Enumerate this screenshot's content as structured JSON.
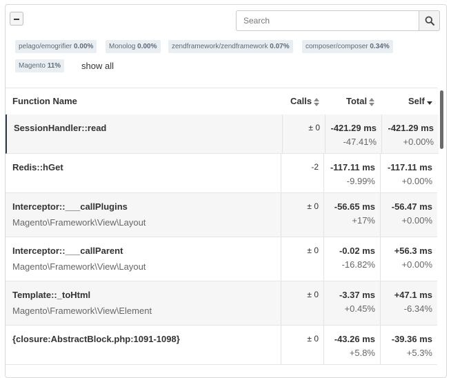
{
  "search": {
    "placeholder": "Search"
  },
  "tags": [
    {
      "name": "pelago/emogrifier",
      "pct": "0.00%"
    },
    {
      "name": "Monolog",
      "pct": "0.00%"
    },
    {
      "name": "zendframework/zendframework",
      "pct": "0.07%"
    },
    {
      "name": "composer/composer",
      "pct": "0.34%"
    },
    {
      "name": "Magento",
      "pct": "11%"
    }
  ],
  "show_all_label": "show all",
  "columns": {
    "function_name": "Function Name",
    "calls": "Calls",
    "total": "Total",
    "self": "Self"
  },
  "rows": [
    {
      "name": "SessionHandler::read",
      "namespace": "",
      "calls": "± 0",
      "total": "-421.29 ms",
      "total_pct": "-47.41%",
      "self": "-421.29 ms",
      "self_pct": "+0.00%"
    },
    {
      "name": "Redis::hGet",
      "namespace": "",
      "calls": "-2",
      "total": "-117.11 ms",
      "total_pct": "-9.99%",
      "self": "-117.11 ms",
      "self_pct": "+0.00%"
    },
    {
      "name": "Interceptor::___callPlugins",
      "namespace": "Magento\\Framework\\View\\Layout",
      "calls": "± 0",
      "total": "-56.65 ms",
      "total_pct": "+17%",
      "self": "-56.47 ms",
      "self_pct": "+0.00%"
    },
    {
      "name": "Interceptor::___callParent",
      "namespace": "Magento\\Framework\\View\\Layout",
      "calls": "± 0",
      "total": "-0.02 ms",
      "total_pct": "-16.82%",
      "self": "+56.3 ms",
      "self_pct": "+0.00%"
    },
    {
      "name": "Template::_toHtml",
      "namespace": "Magento\\Framework\\View\\Element",
      "calls": "± 0",
      "total": "-3.37 ms",
      "total_pct": "+0.45%",
      "self": "+47.1 ms",
      "self_pct": "-6.34%"
    },
    {
      "name": "{closure:AbstractBlock.php:1091-1098}",
      "namespace": "",
      "calls": "± 0",
      "total": "-43.26 ms",
      "total_pct": "+5.8%",
      "self": "-39.36 ms",
      "self_pct": "+5.3%"
    }
  ]
}
